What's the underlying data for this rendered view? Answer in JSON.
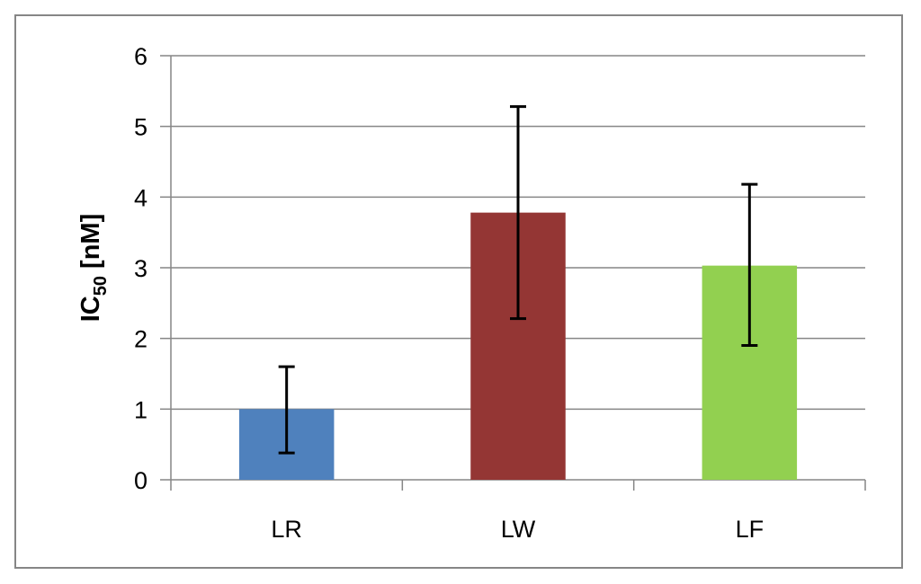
{
  "chart_data": {
    "type": "bar",
    "categories": [
      "LR",
      "LW",
      "LF"
    ],
    "values": [
      1.0,
      3.78,
      3.03
    ],
    "error_low": [
      0.38,
      2.28,
      1.9
    ],
    "error_high": [
      1.6,
      5.28,
      4.18
    ],
    "bar_colors": [
      "#4f81bd",
      "#943634",
      "#92d050"
    ],
    "title": "",
    "xlabel": "",
    "ylabel": {
      "main": "IC",
      "sub": "50",
      "suffix": " [nM]"
    },
    "ylim": [
      0,
      6
    ],
    "yticks": [
      0,
      1,
      2,
      3,
      4,
      5,
      6
    ],
    "grid": true,
    "legend": "none"
  }
}
